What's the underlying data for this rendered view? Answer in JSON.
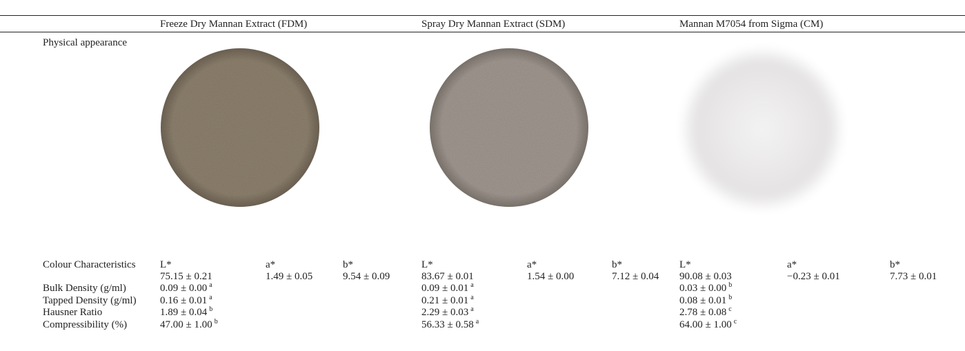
{
  "table": {
    "columns": [
      "Freeze Dry Mannan Extract (FDM)",
      "Spray Dry Mannan Extract (SDM)",
      "Mannan M7054 from Sigma (CM)"
    ],
    "appearance_label": "Physical appearance",
    "colour": {
      "label": "Colour Characteristics",
      "groups": [
        {
          "subheads": [
            "L*",
            "a*",
            "b*"
          ],
          "values": [
            "75.15 ± 0.21",
            "1.49 ± 0.05",
            "9.54 ± 0.09"
          ]
        },
        {
          "subheads": [
            "L*",
            "a*",
            "b*"
          ],
          "values": [
            "83.67 ± 0.01",
            "1.54 ± 0.00",
            "7.12 ± 0.04"
          ]
        },
        {
          "subheads": [
            "L*",
            "a*",
            "b*"
          ],
          "values": [
            "90.08 ± 0.03",
            "−0.23 ± 0.01",
            "7.73 ± 0.01"
          ]
        }
      ]
    },
    "properties": [
      {
        "label": "Bulk Density (g/ml)",
        "cells": [
          {
            "text": "0.09 ± 0.00",
            "sup": "a"
          },
          {
            "text": "0.09 ± 0.01",
            "sup": "a"
          },
          {
            "text": "0.03 ± 0.00",
            "sup": "b"
          }
        ]
      },
      {
        "label": "Tapped Density (g/ml)",
        "cells": [
          {
            "text": "0.16 ± 0.01",
            "sup": "a"
          },
          {
            "text": "0.21 ± 0.01",
            "sup": "a"
          },
          {
            "text": "0.08 ± 0.01",
            "sup": "b"
          }
        ]
      },
      {
        "label": "Hausner Ratio",
        "cells": [
          {
            "text": "1.89 ± 0.04",
            "sup": "b"
          },
          {
            "text": "2.29 ± 0.03",
            "sup": "a"
          },
          {
            "text": "2.78 ± 0.08",
            "sup": "c"
          }
        ]
      },
      {
        "label": "Compressibility (%)",
        "cells": [
          {
            "text": "47.00 ± 1.00",
            "sup": "b"
          },
          {
            "text": "56.33 ± 0.58",
            "sup": "a"
          },
          {
            "text": "64.00 ± 1.00",
            "sup": "c"
          }
        ]
      }
    ]
  }
}
